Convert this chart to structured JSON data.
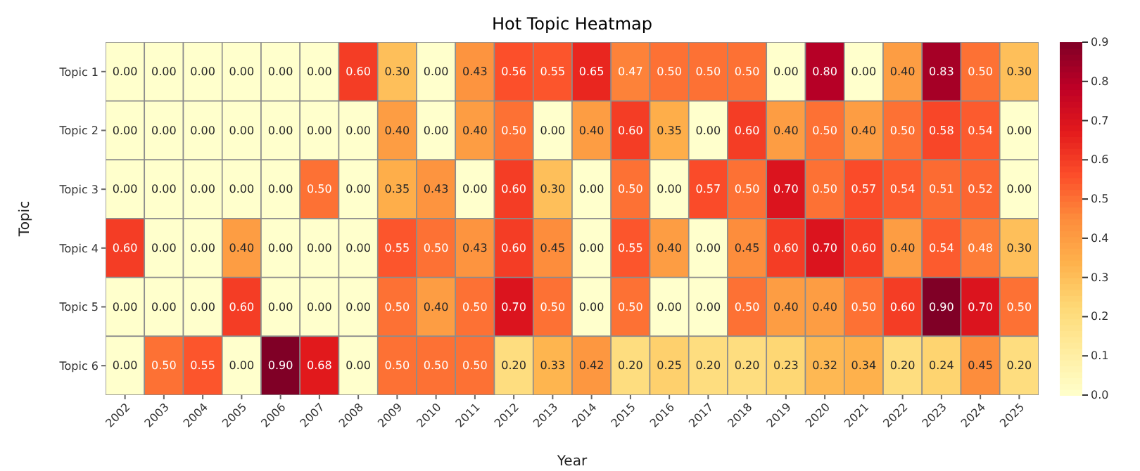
{
  "chart_data": {
    "type": "heatmap",
    "title": "Hot Topic Heatmap",
    "xlabel": "Year",
    "ylabel": "Topic",
    "categories": [
      "2002",
      "2003",
      "2004",
      "2005",
      "2006",
      "2007",
      "2008",
      "2009",
      "2010",
      "2011",
      "2012",
      "2013",
      "2014",
      "2015",
      "2016",
      "2017",
      "2018",
      "2019",
      "2020",
      "2021",
      "2022",
      "2023",
      "2024",
      "2025"
    ],
    "y_categories": [
      "Topic 1",
      "Topic 2",
      "Topic 3",
      "Topic 4",
      "Topic 5",
      "Topic 6"
    ],
    "cells": [
      [
        0.0,
        0.0,
        0.0,
        0.0,
        0.0,
        0.0,
        0.6,
        0.3,
        0.0,
        0.43,
        0.56,
        0.55,
        0.65,
        0.47,
        0.5,
        0.5,
        0.5,
        0.0,
        0.8,
        0.0,
        0.4,
        0.83,
        0.5,
        0.3
      ],
      [
        0.0,
        0.0,
        0.0,
        0.0,
        0.0,
        0.0,
        0.0,
        0.4,
        0.0,
        0.4,
        0.5,
        0.0,
        0.4,
        0.6,
        0.35,
        0.0,
        0.6,
        0.4,
        0.5,
        0.4,
        0.5,
        0.58,
        0.54,
        0.0
      ],
      [
        0.0,
        0.0,
        0.0,
        0.0,
        0.0,
        0.5,
        0.0,
        0.35,
        0.43,
        0.0,
        0.6,
        0.3,
        0.0,
        0.5,
        0.0,
        0.57,
        0.5,
        0.7,
        0.5,
        0.57,
        0.54,
        0.51,
        0.52,
        0.0
      ],
      [
        0.6,
        0.0,
        0.0,
        0.4,
        0.0,
        0.0,
        0.0,
        0.55,
        0.5,
        0.43,
        0.6,
        0.45,
        0.0,
        0.55,
        0.4,
        0.0,
        0.45,
        0.6,
        0.7,
        0.6,
        0.4,
        0.54,
        0.48,
        0.3
      ],
      [
        0.0,
        0.0,
        0.0,
        0.6,
        0.0,
        0.0,
        0.0,
        0.5,
        0.4,
        0.5,
        0.7,
        0.5,
        0.0,
        0.5,
        0.0,
        0.0,
        0.5,
        0.4,
        0.4,
        0.5,
        0.6,
        0.9,
        0.7,
        0.5
      ],
      [
        0.0,
        0.5,
        0.55,
        0.0,
        0.9,
        0.68,
        0.0,
        0.5,
        0.5,
        0.5,
        0.2,
        0.33,
        0.42,
        0.2,
        0.25,
        0.2,
        0.2,
        0.23,
        0.32,
        0.34,
        0.2,
        0.24,
        0.45,
        0.2
      ]
    ],
    "cell_labels": [
      [
        "0.00",
        "0.00",
        "0.00",
        "0.00",
        "0.00",
        "0.00",
        "0.60",
        "0.30",
        "0.00",
        "0.43",
        "0.56",
        "0.55",
        "0.65",
        "0.47",
        "0.50",
        "0.50",
        "0.50",
        "0.00",
        "0.80",
        "0.00",
        "0.40",
        "0.83",
        "0.50",
        "0.30"
      ],
      [
        "0.00",
        "0.00",
        "0.00",
        "0.00",
        "0.00",
        "0.00",
        "0.00",
        "0.40",
        "0.00",
        "0.40",
        "0.50",
        "0.00",
        "0.40",
        "0.60",
        "0.35",
        "0.00",
        "0.60",
        "0.40",
        "0.50",
        "0.40",
        "0.50",
        "0.58",
        "0.54",
        "0.00"
      ],
      [
        "0.00",
        "0.00",
        "0.00",
        "0.00",
        "0.00",
        "0.50",
        "0.00",
        "0.35",
        "0.43",
        "0.00",
        "0.60",
        "0.30",
        "0.00",
        "0.50",
        "0.00",
        "0.57",
        "0.50",
        "0.70",
        "0.50",
        "0.57",
        "0.54",
        "0.51",
        "0.52",
        "0.00"
      ],
      [
        "0.60",
        "0.00",
        "0.00",
        "0.40",
        "0.00",
        "0.00",
        "0.00",
        "0.55",
        "0.50",
        "0.43",
        "0.60",
        "0.45",
        "0.00",
        "0.55",
        "0.40",
        "0.00",
        "0.45",
        "0.60",
        "0.70",
        "0.60",
        "0.40",
        "0.54",
        "0.48",
        "0.30"
      ],
      [
        "0.00",
        "0.00",
        "0.00",
        "0.60",
        "0.00",
        "0.00",
        "0.00",
        "0.50",
        "0.40",
        "0.50",
        "0.70",
        "0.50",
        "0.00",
        "0.50",
        "0.00",
        "0.00",
        "0.50",
        "0.40",
        "0.40",
        "0.50",
        "0.60",
        "0.90",
        "0.70",
        "0.50"
      ],
      [
        "0.00",
        "0.50",
        "0.55",
        "0.00",
        "0.90",
        "0.68",
        "0.00",
        "0.50",
        "0.50",
        "0.50",
        "0.20",
        "0.33",
        "0.42",
        "0.20",
        "0.25",
        "0.20",
        "0.20",
        "0.23",
        "0.32",
        "0.34",
        "0.20",
        "0.24",
        "0.45",
        "0.20"
      ]
    ],
    "clim": [
      0,
      0.9
    ],
    "cticks": [
      {
        "value": 0,
        "label": "0.0"
      },
      {
        "value": 0.1,
        "label": "0.1"
      },
      {
        "value": 0.2,
        "label": "0.2"
      },
      {
        "value": 0.3,
        "label": "0.3"
      },
      {
        "value": 0.4,
        "label": "0.4"
      },
      {
        "value": 0.5,
        "label": "0.5"
      },
      {
        "value": 0.6,
        "label": "0.6"
      },
      {
        "value": 0.7,
        "label": "0.7"
      },
      {
        "value": 0.8,
        "label": "0.8"
      },
      {
        "value": 0.9,
        "label": "0.9"
      }
    ]
  }
}
